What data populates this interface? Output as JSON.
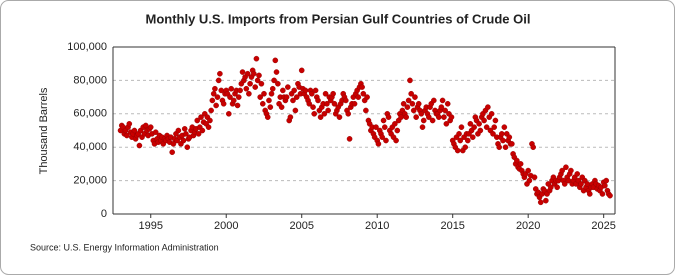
{
  "chart_data": {
    "type": "scatter",
    "title": "Monthly U.S. Imports from Persian Gulf Countries of Crude Oil",
    "y_label": "Thousand Barrels",
    "source": "Source: U.S. Energy Information Administration",
    "color": "#c80000",
    "grid": true,
    "xlim": [
      1992.5,
      2025.75
    ],
    "ylim": [
      0,
      100000
    ],
    "xticks": [
      1995,
      2000,
      2005,
      2010,
      2015,
      2020,
      2025
    ],
    "yticks": [
      0,
      {
        "value": 20000,
        "label": "20,000"
      },
      {
        "value": 40000,
        "label": "40,000"
      },
      {
        "value": 60000,
        "label": "60,000"
      },
      {
        "value": 80000,
        "label": "80,000"
      },
      {
        "value": 100000,
        "label": "100,000"
      }
    ],
    "x": [
      1993,
      1993.08,
      1993.17,
      1993.25,
      1993.33,
      1993.42,
      1993.5,
      1993.58,
      1993.67,
      1993.75,
      1993.83,
      1993.92,
      1994,
      1994.08,
      1994.17,
      1994.25,
      1994.33,
      1994.42,
      1994.5,
      1994.58,
      1994.67,
      1994.75,
      1994.83,
      1994.92,
      1995,
      1995.08,
      1995.17,
      1995.25,
      1995.33,
      1995.42,
      1995.5,
      1995.58,
      1995.67,
      1995.75,
      1995.83,
      1995.92,
      1996,
      1996.08,
      1996.17,
      1996.25,
      1996.33,
      1996.42,
      1996.5,
      1996.58,
      1996.67,
      1996.75,
      1996.83,
      1996.92,
      1997,
      1997.08,
      1997.17,
      1997.25,
      1997.33,
      1997.42,
      1997.5,
      1997.58,
      1997.67,
      1997.75,
      1997.83,
      1997.92,
      1998,
      1998.08,
      1998.17,
      1998.25,
      1998.33,
      1998.42,
      1998.5,
      1998.58,
      1998.67,
      1998.75,
      1998.83,
      1998.92,
      1999,
      1999.08,
      1999.17,
      1999.25,
      1999.33,
      1999.42,
      1999.5,
      1999.58,
      1999.67,
      1999.75,
      1999.83,
      1999.92,
      2000,
      2000.08,
      2000.17,
      2000.25,
      2000.33,
      2000.42,
      2000.5,
      2000.58,
      2000.67,
      2000.75,
      2000.83,
      2000.92,
      2001,
      2001.08,
      2001.17,
      2001.25,
      2001.33,
      2001.42,
      2001.5,
      2001.58,
      2001.67,
      2001.75,
      2001.83,
      2001.92,
      2002,
      2002.08,
      2002.17,
      2002.25,
      2002.33,
      2002.42,
      2002.5,
      2002.58,
      2002.67,
      2002.75,
      2002.83,
      2002.92,
      2003,
      2003.08,
      2003.17,
      2003.25,
      2003.33,
      2003.42,
      2003.5,
      2003.58,
      2003.67,
      2003.75,
      2003.83,
      2003.92,
      2004,
      2004.08,
      2004.17,
      2004.25,
      2004.33,
      2004.42,
      2004.5,
      2004.58,
      2004.67,
      2004.75,
      2004.83,
      2004.92,
      2005,
      2005.08,
      2005.17,
      2005.25,
      2005.33,
      2005.42,
      2005.5,
      2005.58,
      2005.67,
      2005.75,
      2005.83,
      2005.92,
      2006,
      2006.08,
      2006.17,
      2006.25,
      2006.33,
      2006.42,
      2006.5,
      2006.58,
      2006.67,
      2006.75,
      2006.83,
      2006.92,
      2007,
      2007.08,
      2007.17,
      2007.25,
      2007.33,
      2007.42,
      2007.5,
      2007.58,
      2007.67,
      2007.75,
      2007.83,
      2007.92,
      2008,
      2008.08,
      2008.17,
      2008.25,
      2008.33,
      2008.42,
      2008.5,
      2008.58,
      2008.67,
      2008.75,
      2008.83,
      2008.92,
      2009,
      2009.08,
      2009.17,
      2009.25,
      2009.33,
      2009.42,
      2009.5,
      2009.58,
      2009.67,
      2009.75,
      2009.83,
      2009.92,
      2010,
      2010.08,
      2010.17,
      2010.25,
      2010.33,
      2010.42,
      2010.5,
      2010.58,
      2010.67,
      2010.75,
      2010.83,
      2010.92,
      2011,
      2011.08,
      2011.17,
      2011.25,
      2011.33,
      2011.42,
      2011.5,
      2011.58,
      2011.67,
      2011.75,
      2011.83,
      2011.92,
      2012,
      2012.08,
      2012.17,
      2012.25,
      2012.33,
      2012.42,
      2012.5,
      2012.58,
      2012.67,
      2012.75,
      2012.83,
      2012.92,
      2013,
      2013.08,
      2013.17,
      2013.25,
      2013.33,
      2013.42,
      2013.5,
      2013.58,
      2013.67,
      2013.75,
      2013.83,
      2013.92,
      2014,
      2014.08,
      2014.17,
      2014.25,
      2014.33,
      2014.42,
      2014.5,
      2014.58,
      2014.67,
      2014.75,
      2014.83,
      2014.92,
      2015,
      2015.08,
      2015.17,
      2015.25,
      2015.33,
      2015.42,
      2015.5,
      2015.58,
      2015.67,
      2015.75,
      2015.83,
      2015.92,
      2016,
      2016.08,
      2016.17,
      2016.25,
      2016.33,
      2016.42,
      2016.5,
      2016.58,
      2016.67,
      2016.75,
      2016.83,
      2016.92,
      2017,
      2017.08,
      2017.17,
      2017.25,
      2017.33,
      2017.42,
      2017.5,
      2017.58,
      2017.67,
      2017.75,
      2017.83,
      2017.92,
      2018,
      2018.08,
      2018.17,
      2018.25,
      2018.33,
      2018.42,
      2018.5,
      2018.58,
      2018.67,
      2018.75,
      2018.83,
      2018.92,
      2019,
      2019.08,
      2019.17,
      2019.25,
      2019.33,
      2019.42,
      2019.5,
      2019.58,
      2019.67,
      2019.75,
      2019.83,
      2019.92,
      2020,
      2020.08,
      2020.17,
      2020.25,
      2020.33,
      2020.42,
      2020.5,
      2020.58,
      2020.67,
      2020.75,
      2020.83,
      2020.92,
      2021,
      2021.08,
      2021.17,
      2021.25,
      2021.33,
      2021.42,
      2021.5,
      2021.58,
      2021.67,
      2021.75,
      2021.83,
      2021.92,
      2022,
      2022.08,
      2022.17,
      2022.25,
      2022.33,
      2022.42,
      2022.5,
      2022.58,
      2022.67,
      2022.75,
      2022.83,
      2022.92,
      2023,
      2023.08,
      2023.17,
      2023.25,
      2023.33,
      2023.42,
      2023.5,
      2023.58,
      2023.67,
      2023.75,
      2023.83,
      2023.92,
      2024,
      2024.08,
      2024.17,
      2024.25,
      2024.33,
      2024.42,
      2024.5,
      2024.58,
      2024.67,
      2024.75,
      2024.83,
      2024.92,
      2025,
      2025.08,
      2025.17,
      2025.25,
      2025.33,
      2025.42
    ],
    "values": [
      50000,
      53000,
      52000,
      48000,
      50000,
      47000,
      52000,
      54000,
      49000,
      46000,
      48000,
      50000,
      45000,
      47000,
      48000,
      41000,
      50000,
      46000,
      52000,
      48000,
      53000,
      50000,
      47000,
      51000,
      52000,
      48000,
      44000,
      42000,
      49000,
      45000,
      43000,
      47000,
      44000,
      46000,
      42000,
      45000,
      44000,
      47000,
      45000,
      43000,
      46000,
      37000,
      42000,
      45000,
      48000,
      44000,
      50000,
      46000,
      42000,
      47000,
      44000,
      51000,
      48000,
      40000,
      45000,
      46000,
      50000,
      52000,
      47000,
      49000,
      51000,
      56000,
      48000,
      52000,
      58000,
      50000,
      55000,
      60000,
      54000,
      58000,
      52000,
      56000,
      62000,
      68000,
      72000,
      75000,
      65000,
      70000,
      80000,
      84000,
      74000,
      68000,
      66000,
      72000,
      74000,
      72000,
      60000,
      70000,
      75000,
      66000,
      68000,
      72000,
      74000,
      65000,
      70000,
      74000,
      78000,
      85000,
      80000,
      82000,
      75000,
      84000,
      72000,
      78000,
      82000,
      86000,
      84000,
      76000,
      93000,
      80000,
      83000,
      70000,
      78000,
      66000,
      72000,
      62000,
      60000,
      58000,
      68000,
      64000,
      72000,
      75000,
      80000,
      92000,
      85000,
      78000,
      66000,
      70000,
      64000,
      74000,
      70000,
      68000,
      70000,
      76000,
      56000,
      58000,
      72000,
      68000,
      74000,
      62000,
      70000,
      78000,
      76000,
      72000,
      86000,
      75000,
      72000,
      74000,
      70000,
      68000,
      66000,
      74000,
      72000,
      64000,
      60000,
      74000,
      70000,
      68000,
      62000,
      58000,
      64000,
      66000,
      60000,
      72000,
      66000,
      62000,
      70000,
      68000,
      70000,
      72000,
      66000,
      60000,
      62000,
      64000,
      58000,
      66000,
      68000,
      72000,
      70000,
      68000,
      62000,
      60000,
      45000,
      64000,
      66000,
      70000,
      66000,
      72000,
      74000,
      70000,
      76000,
      78000,
      76000,
      72000,
      68000,
      62000,
      70000,
      56000,
      54000,
      50000,
      52000,
      48000,
      46000,
      52000,
      44000,
      42000,
      50000,
      48000,
      46000,
      56000,
      52000,
      44000,
      60000,
      58000,
      50000,
      48000,
      52000,
      46000,
      54000,
      44000,
      50000,
      56000,
      60000,
      58000,
      62000,
      66000,
      60000,
      58000,
      64000,
      68000,
      80000,
      72000,
      66000,
      62000,
      70000,
      58000,
      64000,
      66000,
      62000,
      60000,
      52000,
      56000,
      62000,
      64000,
      60000,
      58000,
      64000,
      66000,
      56000,
      68000,
      62000,
      60000,
      60000,
      58000,
      62000,
      64000,
      68000,
      58000,
      62000,
      54000,
      66000,
      60000,
      56000,
      58000,
      44000,
      42000,
      40000,
      46000,
      38000,
      48000,
      44000,
      52000,
      38000,
      46000,
      40000,
      48000,
      44000,
      48000,
      54000,
      50000,
      46000,
      52000,
      58000,
      56000,
      48000,
      54000,
      50000,
      58000,
      60000,
      56000,
      62000,
      52000,
      64000,
      58000,
      50000,
      60000,
      48000,
      52000,
      56000,
      46000,
      42000,
      40000,
      46000,
      48000,
      44000,
      52000,
      40000,
      48000,
      44000,
      46000,
      42000,
      42000,
      36000,
      34000,
      30000,
      32000,
      28000,
      27000,
      30000,
      26000,
      24000,
      22000,
      24000,
      18000,
      26000,
      20000,
      23000,
      42000,
      40000,
      22000,
      15000,
      12000,
      13000,
      10000,
      7000,
      12000,
      15000,
      14000,
      8000,
      12000,
      18000,
      14000,
      16000,
      20000,
      22000,
      18000,
      20000,
      16000,
      20000,
      22000,
      24000,
      26000,
      20000,
      18000,
      28000,
      22000,
      20000,
      24000,
      26000,
      18000,
      20000,
      22000,
      18000,
      24000,
      20000,
      16000,
      18000,
      22000,
      14000,
      20000,
      16000,
      18000,
      14000,
      12000,
      16000,
      18000,
      16000,
      20000,
      18000,
      15000,
      17000,
      14000,
      16000,
      12000,
      19000,
      17000,
      20000,
      14000,
      12000,
      11000
    ]
  }
}
